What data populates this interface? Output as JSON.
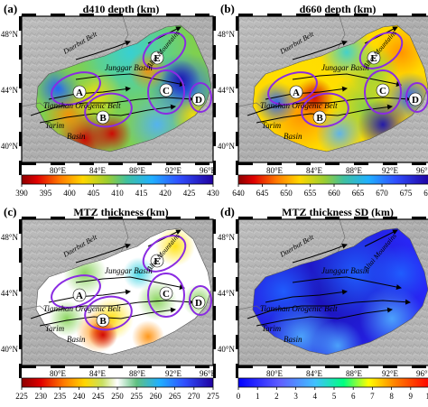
{
  "colors": {
    "ellipse": "#8a2be2",
    "arrow": "#000000",
    "circle_fill": "#ffffff"
  },
  "lon_ticks": [
    "80°E",
    "84°E",
    "88°E",
    "92°E",
    "96°E"
  ],
  "lat_ticks": [
    "48°N",
    "44°N",
    "40°N"
  ],
  "labels": {
    "tianshan": "Tianshan Orogenic Belt",
    "junggar": "Junggar Basin",
    "tarim_1": "Tarim",
    "tarim_2": "Basin",
    "altai": "Altai Mountains",
    "daerbut": "Daerbut Belt"
  },
  "panels": [
    {
      "letter": "(a)",
      "title": "d410 depth (km)",
      "show_circles": true,
      "colorbar": {
        "palette": "rainbow",
        "ticks": [
          "390",
          "395",
          "400",
          "405",
          "410",
          "415",
          "420",
          "425",
          "430"
        ]
      },
      "circles": [
        "A",
        "B",
        "C",
        "D",
        "E"
      ]
    },
    {
      "letter": "(b)",
      "title": "d660 depth (km)",
      "show_circles": true,
      "colorbar": {
        "palette": "rainbow",
        "ticks": [
          "640",
          "645",
          "650",
          "655",
          "660",
          "665",
          "670",
          "675",
          "680"
        ]
      },
      "circles": [
        "A",
        "B",
        "C",
        "D",
        "E"
      ]
    },
    {
      "letter": "(c)",
      "title": "MTZ thickness (km)",
      "show_circles": true,
      "colorbar": {
        "palette": "rainbow-white",
        "ticks": [
          "225",
          "230",
          "235",
          "240",
          "245",
          "250",
          "255",
          "260",
          "265",
          "270",
          "275"
        ]
      },
      "circles": [
        "A",
        "B",
        "C",
        "D",
        "E"
      ]
    },
    {
      "letter": "(d)",
      "title": "MTZ thickness SD (km)",
      "show_circles": false,
      "colorbar": {
        "palette": "sd",
        "ticks": [
          "0",
          "1",
          "2",
          "3",
          "4",
          "5",
          "6",
          "7",
          "8",
          "9",
          "10"
        ]
      },
      "circles": []
    }
  ]
}
